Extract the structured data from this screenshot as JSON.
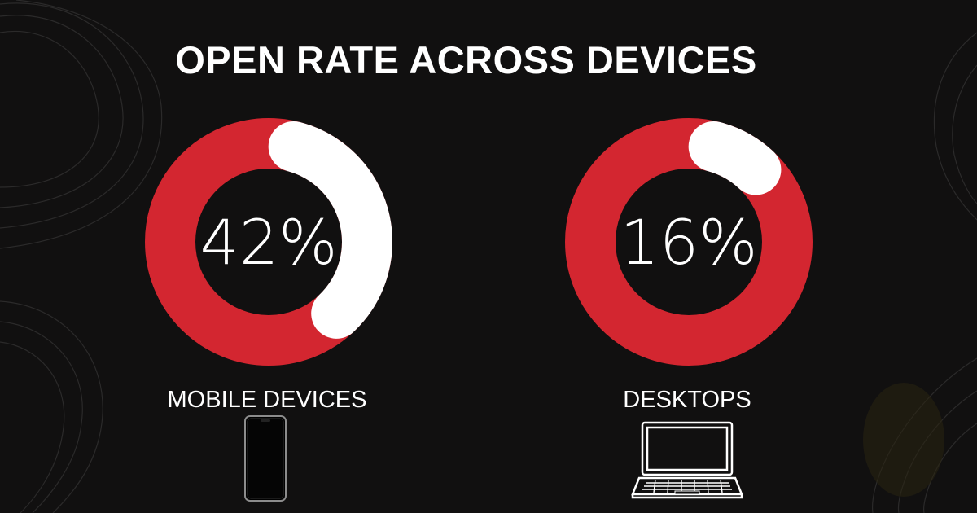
{
  "title": "OPEN RATE ACROSS DEVICES",
  "colors": {
    "background": "#111010",
    "ring": "#d32630",
    "highlight": "#ffffff",
    "text": "#ffffff"
  },
  "chart_data": [
    {
      "type": "pie",
      "series": [
        {
          "values": [
            42,
            58
          ]
        }
      ],
      "label": "42%",
      "category": "MOBILE DEVICES",
      "icon": "smartphone-icon"
    },
    {
      "type": "pie",
      "series": [
        {
          "values": [
            16,
            84
          ]
        }
      ],
      "label": "16%",
      "category": "DESKTOPS",
      "icon": "laptop-icon"
    }
  ]
}
